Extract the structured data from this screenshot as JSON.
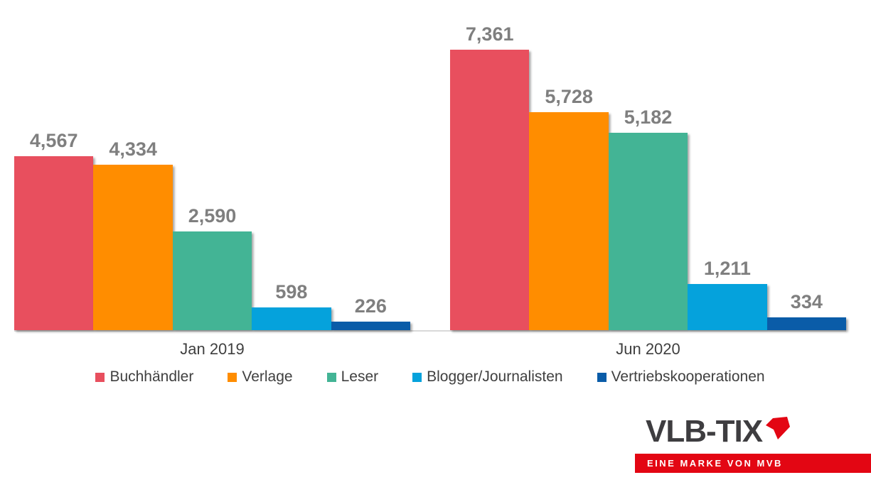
{
  "chart_data": {
    "type": "bar",
    "categories": [
      "Jan 2019",
      "Jun 2020"
    ],
    "series": [
      {
        "name": "Buchhändler",
        "color": "#E84F5E",
        "values": [
          4567,
          7361
        ]
      },
      {
        "name": "Verlage",
        "color": "#FF8D00",
        "values": [
          4334,
          5728
        ]
      },
      {
        "name": "Leser",
        "color": "#43B495",
        "values": [
          2590,
          5182
        ]
      },
      {
        "name": "Blogger/Journalisten",
        "color": "#05A2DC",
        "values": [
          598,
          1211
        ]
      },
      {
        "name": "Vertriebskooperationen",
        "color": "#0A5CA8",
        "values": [
          226,
          334
        ]
      }
    ],
    "value_labels": [
      [
        "4,567",
        "4,334",
        "2,590",
        "598",
        "226"
      ],
      [
        "7,361",
        "5,728",
        "5,182",
        "1,211",
        "334"
      ]
    ],
    "title": "",
    "xlabel": "",
    "ylabel": "",
    "ylim": [
      0,
      7800
    ],
    "grid": false,
    "legend_position": "bottom",
    "value_label_color": "#7F7F7F",
    "axis_label_color": "#3F3F3F",
    "axis_line_color": "#D9D9D9"
  },
  "branding": {
    "logo_text": "VLB-TIX",
    "tagline": "EINE MARKE VON MVB",
    "logo_color": "#3E3D40",
    "accent_red": "#E30613"
  }
}
